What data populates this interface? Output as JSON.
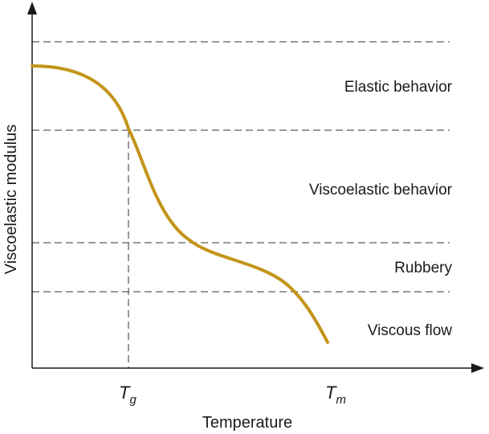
{
  "diagram": {
    "x_axis_title": "Temperature",
    "y_axis_title": "Viscoelastic modulus",
    "ticks": [
      {
        "main": "T",
        "sub": "g"
      },
      {
        "main": "T",
        "sub": "m"
      }
    ],
    "regions": [
      "Elastic behavior",
      "Viscoelastic behavior",
      "Rubbery",
      "Viscous flow"
    ]
  },
  "colors": {
    "curve": "#c39419",
    "axes": "#1a1a1a",
    "dashed": "#333333"
  }
}
